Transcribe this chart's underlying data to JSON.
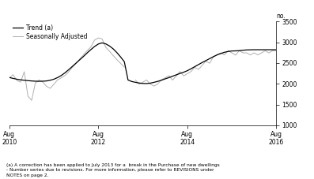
{
  "title": "",
  "ylabel_right": "no.",
  "ylim": [
    1000,
    3500
  ],
  "yticks": [
    1000,
    1500,
    2000,
    2500,
    3000,
    3500
  ],
  "xlim_months": [
    0,
    72
  ],
  "xtick_positions": [
    0,
    24,
    48,
    72
  ],
  "xtick_labels": [
    "Aug\n2010",
    "Aug\n2012",
    "Aug\n2014",
    "Aug\n2016"
  ],
  "legend_entries": [
    "Trend (a)",
    "Seasonally Adjusted"
  ],
  "trend_color": "#000000",
  "seasonal_color": "#b0b0b0",
  "footnote": "(a) A correction has been applied to July 2013 for a  break in the Purchase of new dwellings\n- Number series due to revisions. For more information, please refer to REVISIONS under\nNOTES on page 2.",
  "trend_data": [
    2150,
    2130,
    2110,
    2095,
    2085,
    2075,
    2068,
    2062,
    2060,
    2062,
    2068,
    2085,
    2110,
    2150,
    2200,
    2265,
    2340,
    2420,
    2500,
    2580,
    2660,
    2745,
    2825,
    2900,
    2958,
    2985,
    2960,
    2910,
    2840,
    2750,
    2645,
    2530,
    2090,
    2055,
    2035,
    2018,
    2008,
    2005,
    2015,
    2035,
    2058,
    2085,
    2118,
    2148,
    2182,
    2215,
    2248,
    2278,
    2315,
    2362,
    2412,
    2462,
    2512,
    2558,
    2605,
    2652,
    2695,
    2728,
    2758,
    2778,
    2790,
    2792,
    2798,
    2808,
    2815,
    2818,
    2820,
    2820,
    2820,
    2820,
    2820,
    2820,
    2820
  ],
  "seasonal_data": [
    2145,
    2220,
    2080,
    2040,
    2290,
    1700,
    1600,
    2020,
    2090,
    2042,
    1940,
    1890,
    1990,
    2095,
    2145,
    2200,
    2290,
    2395,
    2490,
    2600,
    2700,
    2800,
    2890,
    3055,
    3105,
    3080,
    2880,
    2780,
    2680,
    2580,
    2490,
    2400,
    null,
    null,
    2090,
    1990,
    2040,
    2090,
    1995,
    1945,
    1995,
    2095,
    2145,
    2195,
    2090,
    2185,
    2295,
    2190,
    2245,
    2295,
    2395,
    2345,
    2445,
    2545,
    2495,
    2645,
    2695,
    2745,
    2695,
    2795,
    2745,
    2690,
    2795,
    2745,
    2745,
    2695,
    2745,
    2695,
    2745,
    2795,
    2745,
    2795,
    2795
  ]
}
